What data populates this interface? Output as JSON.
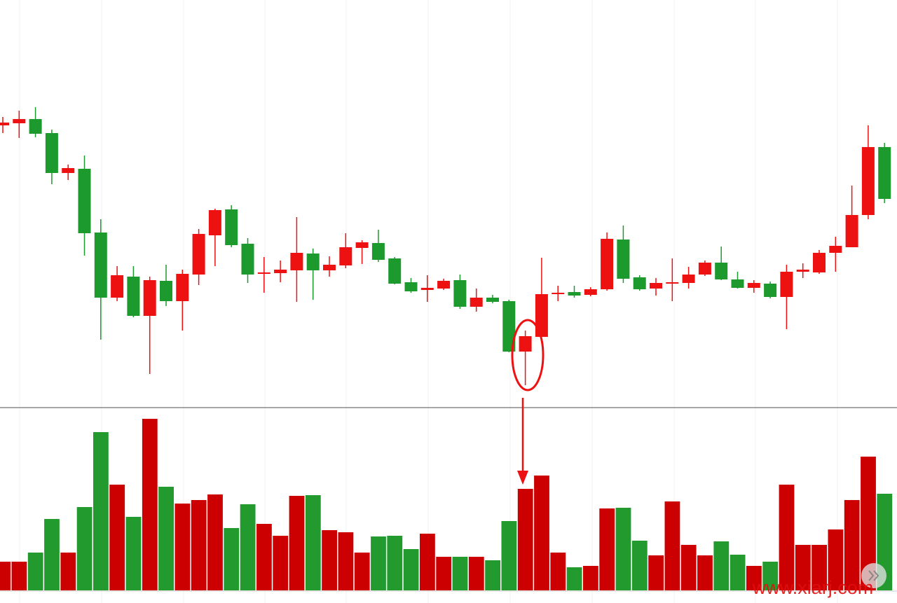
{
  "chart_data": [
    {
      "type": "candlestick",
      "ylim": [
        0,
        540
      ],
      "up_color": "#ee1111",
      "down_color": "#1c9a2e",
      "open": [
        401,
        404,
        410,
        390,
        333,
        339,
        248,
        155,
        185,
        129,
        179,
        150,
        188,
        244,
        281,
        232,
        189,
        190,
        194,
        218,
        194,
        201,
        226,
        233,
        211,
        177,
        166,
        168,
        180,
        142,
        155,
        150,
        78,
        99,
        160,
        163,
        159,
        167,
        238,
        184,
        168,
        175,
        176,
        188,
        205,
        181,
        169,
        175,
        156,
        192,
        191,
        219,
        227,
        273,
        370
      ],
      "high": [
        413,
        422,
        427,
        395,
        345,
        358,
        267,
        200,
        200,
        185,
        202,
        195,
        253,
        282,
        287,
        240,
        213,
        208,
        270,
        225,
        214,
        247,
        237,
        252,
        213,
        183,
        187,
        182,
        188,
        168,
        159,
        152,
        108,
        212,
        172,
        172,
        170,
        248,
        258,
        187,
        183,
        211,
        199,
        208,
        228,
        192,
        180,
        178,
        202,
        204,
        223,
        242,
        315,
        401,
        376
      ],
      "low": [
        390,
        383,
        384,
        317,
        323,
        215,
        95,
        150,
        127,
        46,
        143,
        108,
        173,
        200,
        227,
        176,
        162,
        177,
        149,
        152,
        185,
        197,
        203,
        206,
        174,
        162,
        149,
        166,
        139,
        135,
        147,
        77,
        30,
        99,
        150,
        155,
        157,
        165,
        176,
        165,
        158,
        150,
        168,
        186,
        180,
        168,
        162,
        154,
        110,
        183,
        189,
        192,
        227,
        267,
        290
      ],
      "close": [
        405,
        410,
        389,
        333,
        340,
        247,
        155,
        187,
        129,
        180,
        150,
        189,
        246,
        280,
        230,
        188,
        191,
        195,
        219,
        194,
        202,
        227,
        234,
        209,
        175,
        164,
        169,
        179,
        142,
        155,
        149,
        78,
        100,
        160,
        162,
        158,
        167,
        239,
        182,
        167,
        176,
        177,
        188,
        205,
        181,
        169,
        176,
        156,
        192,
        195,
        219,
        229,
        273,
        370,
        296
      ]
    },
    {
      "type": "volume",
      "ylim": [
        0,
        260
      ],
      "up_color": "#cc0000",
      "down_color": "#229a2e",
      "values": [
        41,
        41,
        54,
        102,
        54,
        119,
        226,
        151,
        105,
        245,
        148,
        124,
        129,
        137,
        89,
        123,
        95,
        78,
        135,
        136,
        86,
        83,
        54,
        77,
        78,
        59,
        81,
        48,
        48,
        48,
        43,
        99,
        145,
        164,
        54,
        33,
        35,
        117,
        118,
        71,
        50,
        127,
        65,
        50,
        70,
        51,
        35,
        41,
        151,
        65,
        65,
        87,
        129,
        191,
        138
      ]
    }
  ],
  "watermark": "www.xiarj.com"
}
